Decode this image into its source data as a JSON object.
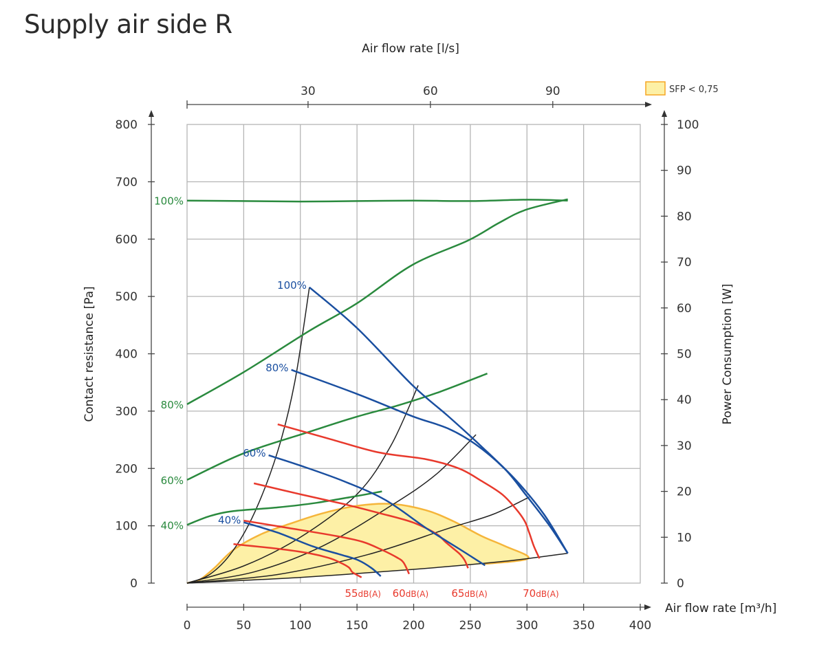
{
  "chart_data": {
    "type": "line",
    "title": "Supply air side R",
    "xlabel": "Air flow rate [m³/h]",
    "x2label": "Air flow rate [l/s]",
    "ylabel": "Contact resistance [Pa]",
    "y2label": "Power Consumption [W]",
    "xlim": [
      0,
      400
    ],
    "ylim": [
      0,
      800
    ],
    "y2lim": [
      0,
      100
    ],
    "grid": true,
    "x_ticks": [
      0,
      50,
      100,
      150,
      200,
      250,
      300,
      350,
      400
    ],
    "x2_ticks": [
      30,
      60,
      90
    ],
    "y_ticks": [
      0,
      100,
      200,
      300,
      400,
      500,
      600,
      700,
      800
    ],
    "y2_ticks": [
      0,
      10,
      20,
      30,
      40,
      50,
      60,
      70,
      80,
      90,
      100
    ],
    "legend": {
      "label": "SFP < 0,75",
      "position": "top-right",
      "fill": "#fdf0a6",
      "stroke": "#f5a623"
    },
    "colors": {
      "pressure": "#1a4fa0",
      "power": "#2a8a3e",
      "sound": "#e8392c",
      "system": "#222222",
      "sfp_fill": "#fdf0a6",
      "sfp_stroke": "#f5b53a",
      "grid": "#b5b5b5"
    },
    "pressure_series": [
      {
        "name": "100%",
        "axis": "Pa",
        "points": [
          [
            108,
            516
          ],
          [
            150,
            445
          ],
          [
            199,
            345
          ],
          [
            230,
            292
          ],
          [
            260,
            238
          ],
          [
            290,
            180
          ],
          [
            315,
            120
          ],
          [
            336,
            52
          ]
        ]
      },
      {
        "name": "80%",
        "axis": "Pa",
        "points": [
          [
            92,
            372
          ],
          [
            150,
            330
          ],
          [
            199,
            291
          ],
          [
            230,
            270
          ],
          [
            254,
            243
          ],
          [
            280,
            200
          ],
          [
            299,
            154
          ],
          [
            320,
            100
          ],
          [
            336,
            52
          ]
        ]
      },
      {
        "name": "60%",
        "axis": "Pa",
        "points": [
          [
            72,
            223
          ],
          [
            100,
            205
          ],
          [
            138,
            178
          ],
          [
            175,
            145
          ],
          [
            211,
            96
          ],
          [
            240,
            60
          ],
          [
            263,
            31
          ]
        ]
      },
      {
        "name": "40%",
        "axis": "Pa",
        "points": [
          [
            50,
            106
          ],
          [
            80,
            88
          ],
          [
            111,
            64
          ],
          [
            135,
            50
          ],
          [
            151,
            40
          ],
          [
            163,
            26
          ],
          [
            171,
            12
          ]
        ]
      }
    ],
    "power_series": [
      {
        "name": "100%",
        "axis": "W",
        "points": [
          [
            0,
            83.4
          ],
          [
            50,
            83.3
          ],
          [
            100,
            83.2
          ],
          [
            150,
            83.3
          ],
          [
            200,
            83.4
          ],
          [
            250,
            83.3
          ],
          [
            300,
            83.6
          ],
          [
            336,
            83.4
          ]
        ]
      },
      {
        "name": "80%",
        "axis": "W",
        "points": [
          [
            0,
            39
          ],
          [
            50,
            46
          ],
          [
            108,
            55
          ],
          [
            150,
            61
          ],
          [
            199,
            69.4
          ],
          [
            248,
            74.7
          ],
          [
            275,
            78.5
          ],
          [
            299,
            81.4
          ],
          [
            336,
            83.7
          ]
        ]
      },
      {
        "name": "60%",
        "axis": "W",
        "points": [
          [
            0,
            22.5
          ],
          [
            50,
            28.3
          ],
          [
            108,
            33
          ],
          [
            150,
            36.3
          ],
          [
            187,
            38.8
          ],
          [
            223,
            41.7
          ],
          [
            265,
            45.7
          ]
        ]
      },
      {
        "name": "40%",
        "axis": "W",
        "points": [
          [
            0,
            12.7
          ],
          [
            20,
            14.6
          ],
          [
            41,
            15.7
          ],
          [
            80,
            16.5
          ],
          [
            114,
            17.5
          ],
          [
            150,
            19
          ],
          [
            172,
            20
          ]
        ]
      }
    ],
    "sound_series": [
      {
        "name": "55dB(A)",
        "label_num": "55",
        "label_unit": "dB(A)",
        "points": [
          [
            41,
            68
          ],
          [
            80,
            60
          ],
          [
            108,
            52
          ],
          [
            125,
            44
          ],
          [
            135,
            36
          ],
          [
            143,
            27
          ],
          [
            146,
            19
          ],
          [
            154,
            10
          ]
        ]
      },
      {
        "name": "60dB(A)",
        "label_num": "60",
        "label_unit": "dB(A)",
        "points": [
          [
            50,
            109
          ],
          [
            90,
            96
          ],
          [
            132,
            82
          ],
          [
            155,
            72
          ],
          [
            172,
            58
          ],
          [
            185,
            45
          ],
          [
            191,
            36
          ],
          [
            196,
            16
          ]
        ]
      },
      {
        "name": "65dB(A)",
        "label_num": "65",
        "label_unit": "dB(A)",
        "points": [
          [
            59,
            174
          ],
          [
            100,
            155
          ],
          [
            138,
            138
          ],
          [
            170,
            122
          ],
          [
            199,
            106
          ],
          [
            220,
            86
          ],
          [
            229,
            70
          ],
          [
            240,
            52
          ],
          [
            245,
            40
          ],
          [
            248,
            26
          ]
        ]
      },
      {
        "name": "70dB(A)",
        "label_num": "70",
        "label_unit": "dB(A)",
        "points": [
          [
            80,
            277
          ],
          [
            125,
            252
          ],
          [
            169,
            228
          ],
          [
            211,
            216
          ],
          [
            240,
            200
          ],
          [
            260,
            178
          ],
          [
            278,
            155
          ],
          [
            290,
            130
          ],
          [
            298,
            108
          ],
          [
            302,
            88
          ],
          [
            306,
            65
          ],
          [
            311,
            43
          ]
        ]
      }
    ],
    "system_curves": [
      {
        "name": "system-1",
        "points": [
          [
            0,
            0
          ],
          [
            20,
            15
          ],
          [
            40,
            55
          ],
          [
            60,
            125
          ],
          [
            80,
            230
          ],
          [
            95,
            350
          ],
          [
            108,
            516
          ]
        ]
      },
      {
        "name": "system-2",
        "points": [
          [
            0,
            0
          ],
          [
            50,
            30
          ],
          [
            100,
            80
          ],
          [
            150,
            155
          ],
          [
            180,
            240
          ],
          [
            204,
            345
          ]
        ]
      },
      {
        "name": "system-3",
        "points": [
          [
            0,
            0
          ],
          [
            60,
            20
          ],
          [
            120,
            65
          ],
          [
            180,
            135
          ],
          [
            220,
            190
          ],
          [
            255,
            259
          ]
        ]
      },
      {
        "name": "system-4",
        "points": [
          [
            0,
            0
          ],
          [
            80,
            15
          ],
          [
            160,
            50
          ],
          [
            230,
            95
          ],
          [
            270,
            120
          ],
          [
            302,
            150
          ]
        ]
      },
      {
        "name": "system-5",
        "points": [
          [
            0,
            0
          ],
          [
            100,
            10
          ],
          [
            200,
            24
          ],
          [
            280,
            38
          ],
          [
            336,
            52
          ]
        ]
      }
    ],
    "sfp_region": {
      "name": "SFP < 0,75",
      "points": [
        [
          0,
          0
        ],
        [
          10,
          5
        ],
        [
          15,
          11
        ],
        [
          25,
          28
        ],
        [
          41,
          58
        ],
        [
          65,
          85
        ],
        [
          90,
          103
        ],
        [
          120,
          122
        ],
        [
          151,
          135
        ],
        [
          181,
          138
        ],
        [
          211,
          127
        ],
        [
          235,
          108
        ],
        [
          260,
          82
        ],
        [
          280,
          65
        ],
        [
          301,
          43
        ],
        [
          260,
          33
        ],
        [
          200,
          24
        ],
        [
          150,
          17
        ],
        [
          100,
          10
        ],
        [
          50,
          4
        ],
        [
          0,
          0
        ]
      ]
    }
  }
}
